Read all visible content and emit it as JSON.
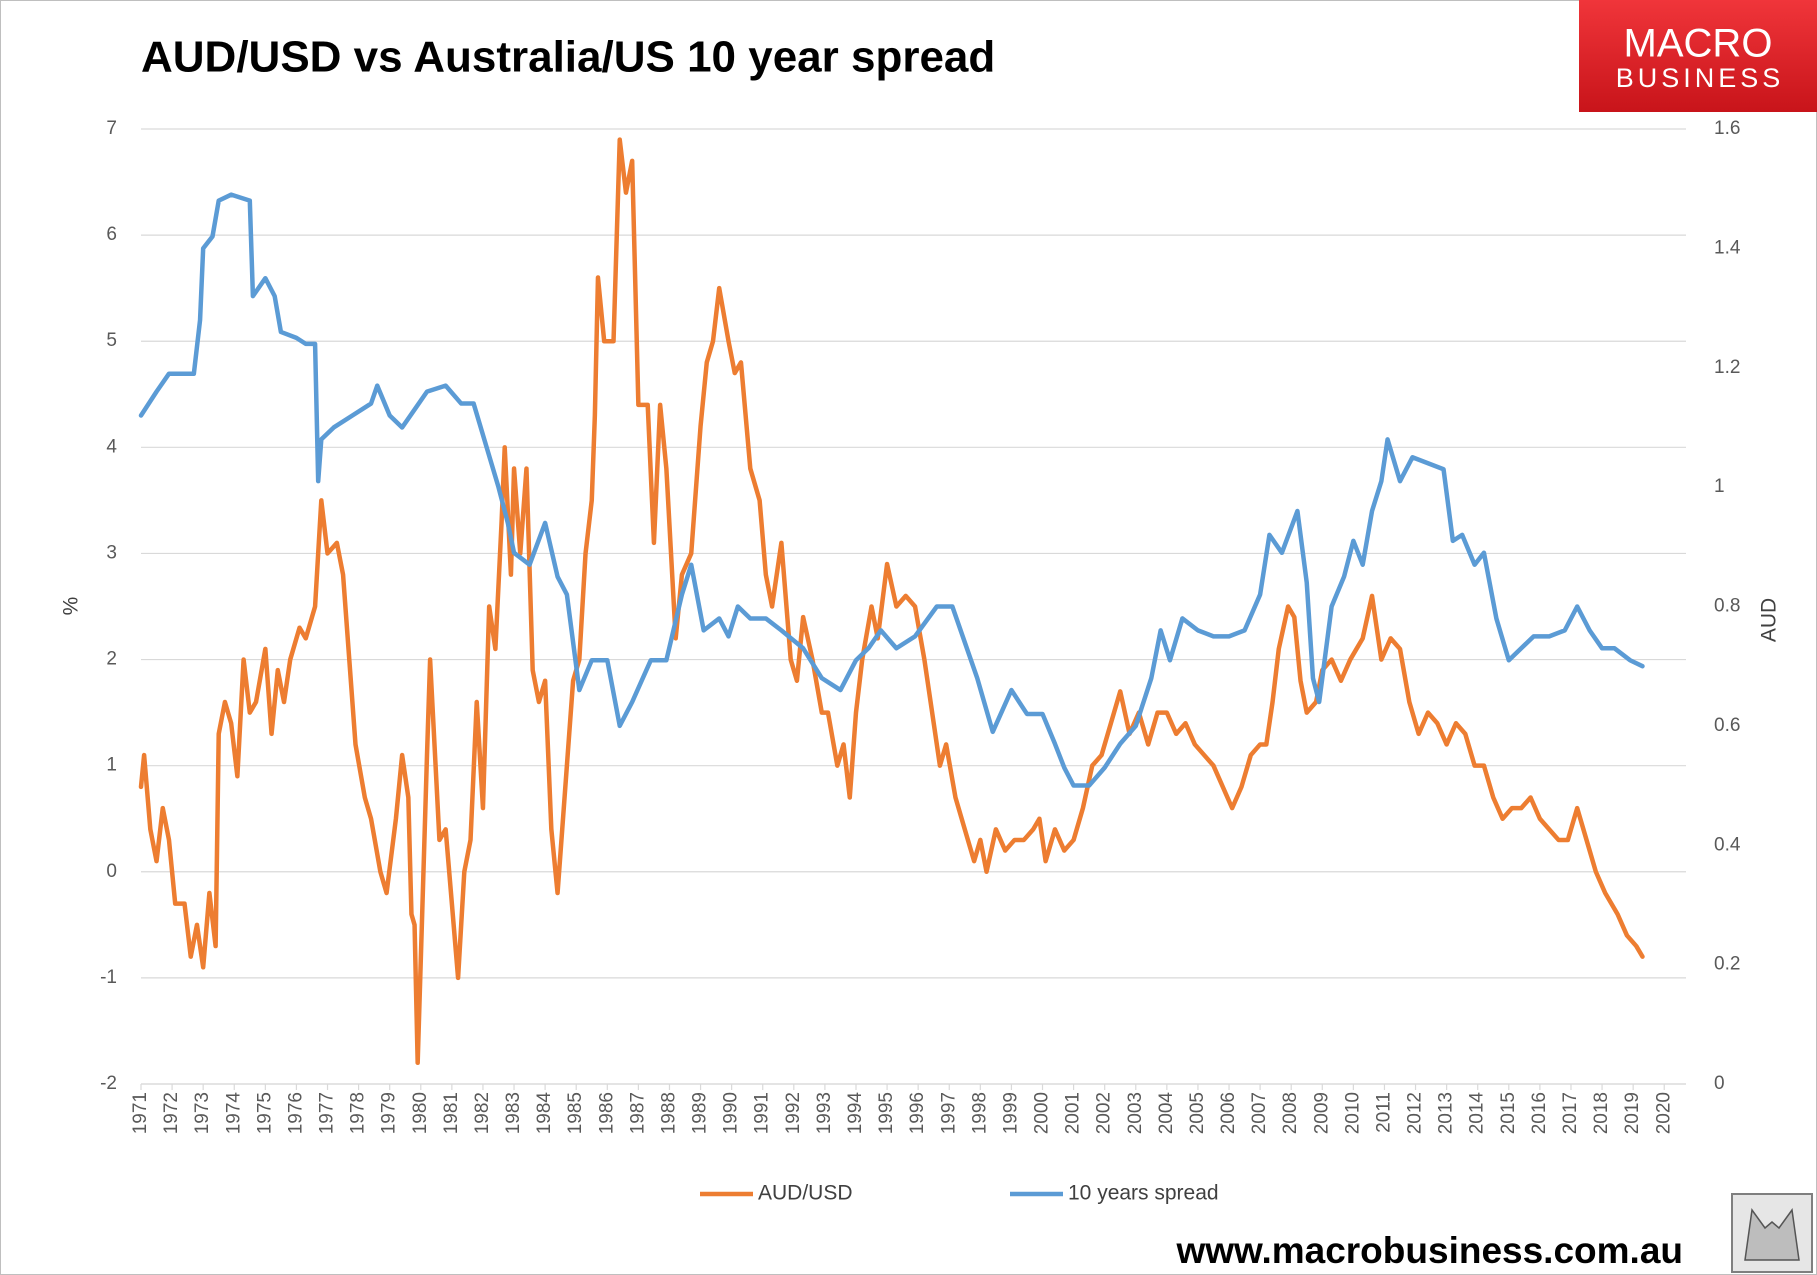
{
  "chart_data": {
    "type": "line",
    "title": "AUD/USD vs Australia/US 10 year spread",
    "brand": {
      "line1": "MACRO",
      "line2": "BUSINESS"
    },
    "footer": "www.macrobusiness.com.au",
    "ylabel": "%",
    "y2label": "AUD",
    "xlim": [
      1971,
      2020.7
    ],
    "xticks": [
      1971,
      1972,
      1973,
      1974,
      1975,
      1976,
      1977,
      1978,
      1979,
      1980,
      1981,
      1982,
      1983,
      1984,
      1985,
      1986,
      1987,
      1988,
      1989,
      1990,
      1991,
      1992,
      1993,
      1994,
      1995,
      1996,
      1997,
      1998,
      1999,
      2000,
      2001,
      2002,
      2003,
      2004,
      2005,
      2006,
      2007,
      2008,
      2009,
      2010,
      2011,
      2012,
      2013,
      2014,
      2015,
      2016,
      2017,
      2018,
      2019,
      2020
    ],
    "ylim": [
      -2,
      7
    ],
    "yticks": [
      -2,
      -1,
      0,
      1,
      2,
      3,
      4,
      5,
      6,
      7
    ],
    "y2lim": [
      0,
      1.6
    ],
    "y2ticks": [
      0,
      0.2,
      0.4,
      0.6,
      0.8,
      1,
      1.2,
      1.4,
      1.6
    ],
    "grid": true,
    "legend": "bottom",
    "series": [
      {
        "name": "AUD/USD",
        "color": "#ed7d31",
        "x": [
          1971.0,
          1971.1,
          1971.3,
          1971.5,
          1971.7,
          1971.9,
          1972.1,
          1972.4,
          1972.6,
          1972.8,
          1973.0,
          1973.2,
          1973.4,
          1973.5,
          1973.7,
          1973.9,
          1974.1,
          1974.3,
          1974.5,
          1974.7,
          1975.0,
          1975.2,
          1975.4,
          1975.6,
          1975.8,
          1976.1,
          1976.3,
          1976.6,
          1976.8,
          1977.0,
          1977.3,
          1977.5,
          1977.7,
          1977.9,
          1978.2,
          1978.4,
          1978.7,
          1978.9,
          1979.2,
          1979.4,
          1979.6,
          1979.7,
          1979.8,
          1979.9,
          1980.2,
          1980.3,
          1980.6,
          1980.8,
          1981.0,
          1981.2,
          1981.4,
          1981.6,
          1981.8,
          1982.0,
          1982.2,
          1982.4,
          1982.6,
          1982.7,
          1982.9,
          1983.0,
          1983.2,
          1983.4,
          1983.6,
          1983.8,
          1984.0,
          1984.2,
          1984.4,
          1984.7,
          1984.9,
          1985.1,
          1985.3,
          1985.5,
          1985.6,
          1985.7,
          1985.9,
          1986.2,
          1986.4,
          1986.6,
          1986.8,
          1987.0,
          1987.3,
          1987.5,
          1987.7,
          1987.9,
          1988.2,
          1988.4,
          1988.7,
          1989.0,
          1989.2,
          1989.4,
          1989.6,
          1989.9,
          1990.1,
          1990.3,
          1990.6,
          1990.9,
          1991.1,
          1991.3,
          1991.6,
          1991.9,
          1992.1,
          1992.3,
          1992.6,
          1992.9,
          1993.1,
          1993.4,
          1993.6,
          1993.8,
          1994.0,
          1994.2,
          1994.5,
          1994.7,
          1995.0,
          1995.3,
          1995.6,
          1995.9,
          1996.2,
          1996.5,
          1996.7,
          1996.9,
          1997.2,
          1997.5,
          1997.8,
          1998.0,
          1998.2,
          1998.5,
          1998.8,
          1999.1,
          1999.4,
          1999.7,
          1999.9,
          2000.1,
          2000.4,
          2000.7,
          2001.0,
          2001.3,
          2001.6,
          2001.9,
          2002.2,
          2002.5,
          2002.8,
          2003.1,
          2003.4,
          2003.7,
          2004.0,
          2004.3,
          2004.6,
          2004.9,
          2005.2,
          2005.5,
          2005.8,
          2006.1,
          2006.4,
          2006.7,
          2007.0,
          2007.2,
          2007.4,
          2007.6,
          2007.9,
          2008.1,
          2008.3,
          2008.5,
          2008.8,
          2009.0,
          2009.3,
          2009.6,
          2009.9,
          2010.1,
          2010.3,
          2010.6,
          2010.9,
          2011.2,
          2011.5,
          2011.8,
          2012.1,
          2012.4,
          2012.7,
          2013.0,
          2013.3,
          2013.6,
          2013.9,
          2014.2,
          2014.5,
          2014.8,
          2015.1,
          2015.4,
          2015.7,
          2016.0,
          2016.3,
          2016.6,
          2016.9,
          2017.2,
          2017.5,
          2017.8,
          2018.1,
          2018.5,
          2018.8,
          2019.1,
          2019.3
        ],
        "values": [
          0.8,
          1.1,
          0.4,
          0.1,
          0.6,
          0.3,
          -0.3,
          -0.3,
          -0.8,
          -0.5,
          -0.9,
          -0.2,
          -0.7,
          1.3,
          1.6,
          1.4,
          0.9,
          2.0,
          1.5,
          1.6,
          2.1,
          1.3,
          1.9,
          1.6,
          2.0,
          2.3,
          2.2,
          2.5,
          3.5,
          3.0,
          3.1,
          2.8,
          2.0,
          1.2,
          0.7,
          0.5,
          0.0,
          -0.2,
          0.5,
          1.1,
          0.7,
          -0.4,
          -0.5,
          -1.8,
          1.1,
          2.0,
          0.3,
          0.4,
          -0.3,
          -1.0,
          0.0,
          0.3,
          1.6,
          0.6,
          2.5,
          2.1,
          3.3,
          4.0,
          2.8,
          3.8,
          3.0,
          3.8,
          1.9,
          1.6,
          1.8,
          0.4,
          -0.2,
          1.0,
          1.8,
          2.0,
          3.0,
          3.5,
          4.3,
          5.6,
          5.0,
          5.0,
          6.9,
          6.4,
          6.7,
          4.4,
          4.4,
          3.1,
          4.4,
          3.8,
          2.2,
          2.8,
          3.0,
          4.2,
          4.8,
          5.0,
          5.5,
          5.0,
          4.7,
          4.8,
          3.8,
          3.5,
          2.8,
          2.5,
          3.1,
          2.0,
          1.8,
          2.4,
          2.0,
          1.5,
          1.5,
          1.0,
          1.2,
          0.7,
          1.5,
          2.0,
          2.5,
          2.2,
          2.9,
          2.5,
          2.6,
          2.5,
          2.0,
          1.4,
          1.0,
          1.2,
          0.7,
          0.4,
          0.1,
          0.3,
          0.0,
          0.4,
          0.2,
          0.3,
          0.3,
          0.4,
          0.5,
          0.1,
          0.4,
          0.2,
          0.3,
          0.6,
          1.0,
          1.1,
          1.4,
          1.7,
          1.3,
          1.5,
          1.2,
          1.5,
          1.5,
          1.3,
          1.4,
          1.2,
          1.1,
          1.0,
          0.8,
          0.6,
          0.8,
          1.1,
          1.2,
          1.2,
          1.6,
          2.1,
          2.5,
          2.4,
          1.8,
          1.5,
          1.6,
          1.9,
          2.0,
          1.8,
          2.0,
          2.1,
          2.2,
          2.6,
          2.0,
          2.2,
          2.1,
          1.6,
          1.3,
          1.5,
          1.4,
          1.2,
          1.4,
          1.3,
          1.0,
          1.0,
          0.7,
          0.5,
          0.6,
          0.6,
          0.7,
          0.5,
          0.4,
          0.3,
          0.3,
          0.6,
          0.3,
          0.0,
          -0.2,
          -0.4,
          -0.6,
          -0.7,
          -0.8
        ]
      },
      {
        "name": "10 years spread",
        "color": "#5b9bd5",
        "axis": "y2",
        "x": [
          1971.0,
          1971.5,
          1971.9,
          1972.7,
          1972.9,
          1973.0,
          1973.3,
          1973.5,
          1973.9,
          1974.5,
          1974.6,
          1975.0,
          1975.3,
          1975.5,
          1976.0,
          1976.3,
          1976.6,
          1976.7,
          1976.8,
          1977.2,
          1977.8,
          1978.4,
          1978.6,
          1979.0,
          1979.4,
          1979.8,
          1980.2,
          1980.8,
          1981.3,
          1981.7,
          1982.1,
          1982.5,
          1982.8,
          1983.0,
          1983.5,
          1984.0,
          1984.4,
          1984.7,
          1985.1,
          1985.5,
          1986.0,
          1986.4,
          1986.8,
          1987.4,
          1987.9,
          1988.4,
          1988.7,
          1989.1,
          1989.6,
          1989.9,
          1990.2,
          1990.6,
          1991.1,
          1991.6,
          1992.3,
          1992.9,
          1993.5,
          1994.0,
          1994.4,
          1994.8,
          1995.3,
          1995.9,
          1996.6,
          1997.1,
          1997.9,
          1998.4,
          1999.0,
          1999.5,
          2000.0,
          2000.4,
          2000.7,
          2001.0,
          2001.5,
          2002.0,
          2002.5,
          2003.0,
          2003.5,
          2003.8,
          2004.1,
          2004.5,
          2005.0,
          2005.5,
          2006.0,
          2006.5,
          2007.0,
          2007.3,
          2007.7,
          2008.2,
          2008.5,
          2008.7,
          2008.9,
          2009.3,
          2009.7,
          2010.0,
          2010.3,
          2010.6,
          2010.9,
          2011.1,
          2011.5,
          2011.9,
          2012.4,
          2012.9,
          2013.2,
          2013.5,
          2013.9,
          2014.2,
          2014.6,
          2015.0,
          2015.4,
          2015.8,
          2016.3,
          2016.8,
          2017.2,
          2017.6,
          2018.0,
          2018.4,
          2018.9,
          2019.3
        ],
        "values": [
          1.12,
          1.16,
          1.19,
          1.19,
          1.28,
          1.4,
          1.42,
          1.48,
          1.49,
          1.48,
          1.32,
          1.35,
          1.32,
          1.26,
          1.25,
          1.24,
          1.24,
          1.01,
          1.08,
          1.1,
          1.12,
          1.14,
          1.17,
          1.12,
          1.1,
          1.13,
          1.16,
          1.17,
          1.14,
          1.14,
          1.07,
          1.0,
          0.94,
          0.89,
          0.87,
          0.94,
          0.85,
          0.82,
          0.66,
          0.71,
          0.71,
          0.6,
          0.64,
          0.71,
          0.71,
          0.82,
          0.87,
          0.76,
          0.78,
          0.75,
          0.8,
          0.78,
          0.78,
          0.76,
          0.73,
          0.68,
          0.66,
          0.71,
          0.73,
          0.76,
          0.73,
          0.75,
          0.8,
          0.8,
          0.68,
          0.59,
          0.66,
          0.62,
          0.62,
          0.57,
          0.53,
          0.5,
          0.5,
          0.53,
          0.57,
          0.6,
          0.68,
          0.76,
          0.71,
          0.78,
          0.76,
          0.75,
          0.75,
          0.76,
          0.82,
          0.92,
          0.89,
          0.96,
          0.84,
          0.68,
          0.64,
          0.8,
          0.85,
          0.91,
          0.87,
          0.96,
          1.01,
          1.08,
          1.01,
          1.05,
          1.04,
          1.03,
          0.91,
          0.92,
          0.87,
          0.89,
          0.78,
          0.71,
          0.73,
          0.75,
          0.75,
          0.76,
          0.8,
          0.76,
          0.73,
          0.73,
          0.71,
          0.7
        ]
      }
    ]
  }
}
